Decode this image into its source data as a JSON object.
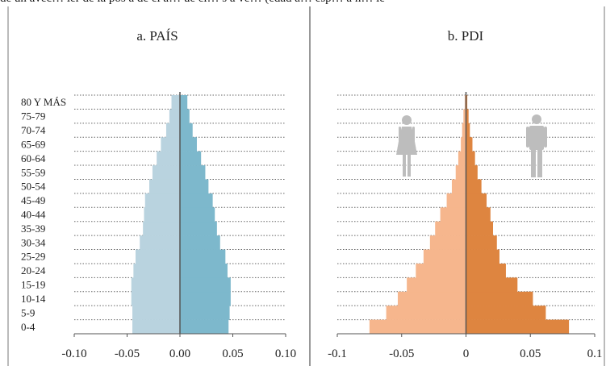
{
  "top_caption": "de un avec… ier de la pos a de el a… ue el… s a ve… (edad a… esp… a n… le",
  "chart_data": [
    {
      "type": "bar",
      "orientation": "horizontal-population-pyramid",
      "title": "a. PAÍS",
      "categories": [
        "0-4",
        "5-9",
        "10-14",
        "15-19",
        "20-24",
        "25-29",
        "30-34",
        "35-39",
        "40-44",
        "45-49",
        "50-54",
        "55-59",
        "60-64",
        "65-69",
        "70-74",
        "75-79",
        "80 Y MÁS"
      ],
      "xlim": [
        -0.1,
        0.1
      ],
      "xticks": [
        "-0.10",
        "-0.05",
        "0.00",
        "0.05",
        "0.10"
      ],
      "xtick_values": [
        -0.1,
        -0.05,
        0.0,
        0.05,
        0.1
      ],
      "grid": true,
      "series": [
        {
          "values": [
            -0.045,
            -0.045,
            -0.046,
            -0.046,
            -0.044,
            -0.042,
            -0.038,
            -0.035,
            -0.034,
            -0.033,
            -0.029,
            -0.026,
            -0.022,
            -0.018,
            -0.013,
            -0.01,
            -0.008
          ],
          "color": "#b9d3df"
        },
        {
          "values": [
            0.046,
            0.047,
            0.048,
            0.048,
            0.045,
            0.043,
            0.038,
            0.035,
            0.033,
            0.031,
            0.027,
            0.024,
            0.02,
            0.016,
            0.012,
            0.009,
            0.007
          ],
          "color": "#7db8cc"
        }
      ]
    },
    {
      "type": "bar",
      "orientation": "horizontal-population-pyramid",
      "title": "b. PDI",
      "categories": [
        "0-4",
        "5-9",
        "10-14",
        "15-19",
        "20-24",
        "25-29",
        "30-34",
        "35-39",
        "40-44",
        "45-49",
        "50-54",
        "55-59",
        "60-64",
        "65-69",
        "70-74",
        "75-79",
        "80 Y MÁS"
      ],
      "xlim": [
        -0.1,
        0.1
      ],
      "xticks": [
        "-0.1",
        "-0.05",
        "0",
        "0.05",
        "0.1"
      ],
      "xtick_values": [
        -0.1,
        -0.05,
        0.0,
        0.05,
        0.1
      ],
      "grid": true,
      "series": [
        {
          "values": [
            -0.075,
            -0.062,
            -0.053,
            -0.046,
            -0.039,
            -0.033,
            -0.028,
            -0.024,
            -0.02,
            -0.015,
            -0.011,
            -0.008,
            -0.006,
            -0.004,
            -0.003,
            -0.002,
            -0.001
          ],
          "color": "#f6b68d"
        },
        {
          "values": [
            0.08,
            0.062,
            0.052,
            0.04,
            0.031,
            0.026,
            0.024,
            0.021,
            0.019,
            0.016,
            0.012,
            0.009,
            0.007,
            0.005,
            0.003,
            0.002,
            0.001
          ],
          "color": "#de8540"
        }
      ],
      "icons": [
        "female-figure-icon",
        "male-figure-icon"
      ]
    }
  ]
}
